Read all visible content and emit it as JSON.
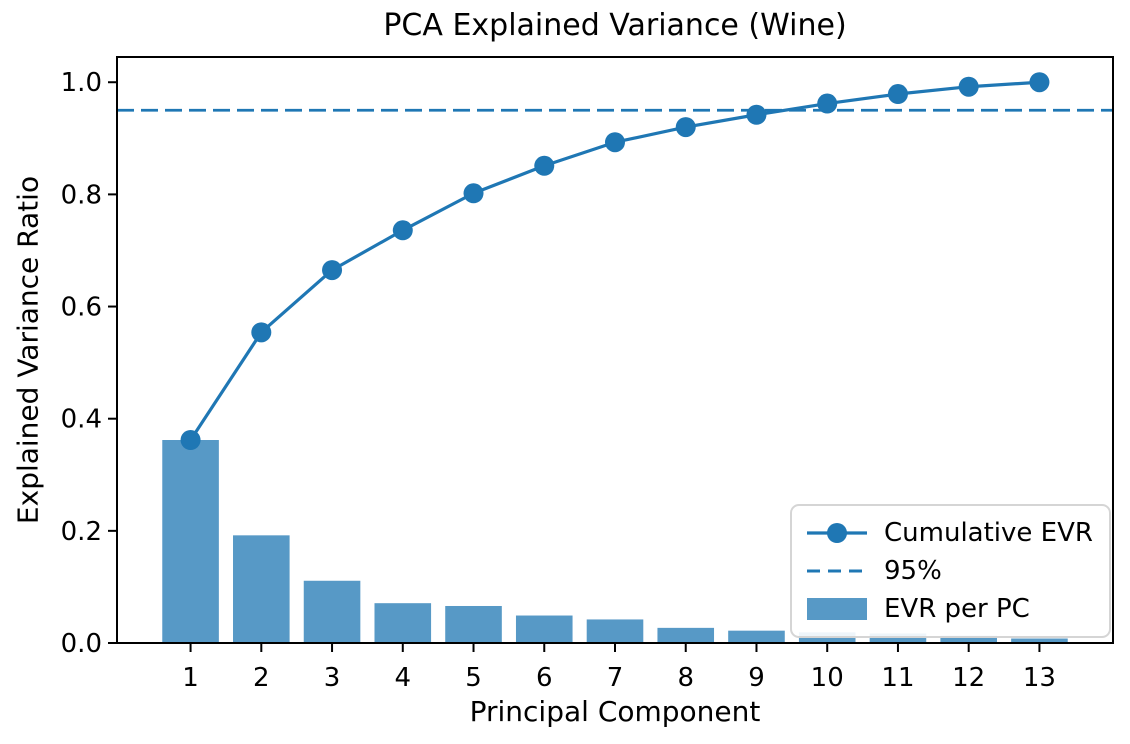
{
  "colors": {
    "line": "#1f77b4",
    "bar": "#5799c6",
    "threshold": "#1f77b4",
    "text": "#000000",
    "spine": "#000000"
  },
  "chart_data": {
    "type": "combo",
    "title": "PCA Explained Variance (Wine)",
    "xlabel": "Principal Component",
    "ylabel": "Explained Variance Ratio",
    "categories": [
      1,
      2,
      3,
      4,
      5,
      6,
      7,
      8,
      9,
      10,
      11,
      12,
      13
    ],
    "series": [
      {
        "name": "EVR per PC",
        "type": "bar",
        "values": [
          0.362,
          0.192,
          0.111,
          0.071,
          0.066,
          0.049,
          0.042,
          0.027,
          0.022,
          0.019,
          0.017,
          0.013,
          0.008
        ]
      },
      {
        "name": "Cumulative EVR",
        "type": "line",
        "values": [
          0.362,
          0.554,
          0.665,
          0.736,
          0.802,
          0.851,
          0.893,
          0.92,
          0.942,
          0.962,
          0.979,
          0.992,
          1.0
        ]
      },
      {
        "name": "95%",
        "type": "threshold",
        "value": 0.95
      }
    ],
    "yticks": [
      0.0,
      0.2,
      0.4,
      0.6,
      0.8,
      1.0
    ],
    "yticklabels": [
      "0.0",
      "0.2",
      "0.4",
      "0.6",
      "0.8",
      "1.0"
    ],
    "ylim": [
      0,
      1.045
    ],
    "xlim": [
      -0.04,
      14.04
    ],
    "grid": false,
    "legend_position": "lower right"
  }
}
